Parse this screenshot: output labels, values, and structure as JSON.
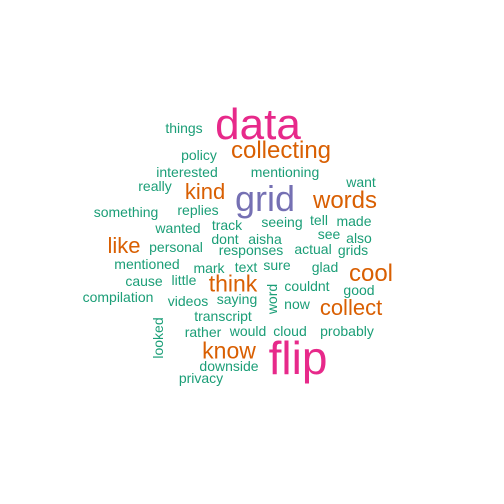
{
  "colors": {
    "green": "#1b9e77",
    "orange": "#d95f02",
    "purple": "#7570b3",
    "pink": "#e7298a"
  },
  "words": {
    "data": "data",
    "flip": "flip",
    "grid": "grid",
    "collecting": "collecting",
    "words": "words",
    "kind": "kind",
    "like": "like",
    "think": "think",
    "cool": "cool",
    "collect": "collect",
    "know": "know",
    "things": "things",
    "policy": "policy",
    "interested": "interested",
    "mentioning": "mentioning",
    "really": "really",
    "want": "want",
    "something": "something",
    "replies": "replies",
    "seeing": "seeing",
    "tell": "tell",
    "made": "made",
    "wanted": "wanted",
    "track": "track",
    "see": "see",
    "also": "also",
    "dont": "dont",
    "aisha": "aisha",
    "personal": "personal",
    "responses": "responses",
    "actual": "actual",
    "grids": "grids",
    "mentioned": "mentioned",
    "mark": "mark",
    "text": "text",
    "sure": "sure",
    "glad": "glad",
    "cause": "cause",
    "little": "little",
    "couldnt": "couldnt",
    "good": "good",
    "compilation": "compilation",
    "videos": "videos",
    "saying": "saying",
    "word": "word",
    "now": "now",
    "transcript": "transcript",
    "looked": "looked",
    "rather": "rather",
    "would": "would",
    "cloud": "cloud",
    "probably": "probably",
    "downside": "downside",
    "privacy": "privacy"
  }
}
